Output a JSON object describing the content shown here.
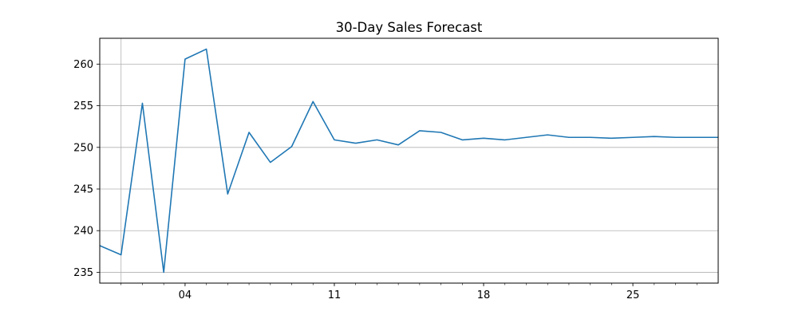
{
  "chart_data": {
    "type": "line",
    "title": "30-Day Sales Forecast",
    "xlabel": "",
    "ylabel": "",
    "x_date_start": "2024-06-30",
    "x": [
      "2024-06-30",
      "2024-07-01",
      "2024-07-02",
      "2024-07-03",
      "2024-07-04",
      "2024-07-05",
      "2024-07-06",
      "2024-07-07",
      "2024-07-08",
      "2024-07-09",
      "2024-07-10",
      "2024-07-11",
      "2024-07-12",
      "2024-07-13",
      "2024-07-14",
      "2024-07-15",
      "2024-07-16",
      "2024-07-17",
      "2024-07-18",
      "2024-07-19",
      "2024-07-20",
      "2024-07-21",
      "2024-07-22",
      "2024-07-23",
      "2024-07-24",
      "2024-07-25",
      "2024-07-26",
      "2024-07-27",
      "2024-07-28",
      "2024-07-29"
    ],
    "series": [
      {
        "name": "",
        "color": "#1f77b4",
        "values": [
          238.2,
          237.1,
          255.3,
          235.0,
          260.6,
          261.8,
          244.4,
          251.8,
          248.2,
          250.1,
          255.5,
          250.9,
          250.5,
          250.9,
          250.3,
          252.0,
          251.8,
          250.9,
          251.1,
          250.9,
          251.2,
          251.5,
          251.2,
          251.2,
          251.1,
          251.2,
          251.3,
          251.2,
          251.2,
          251.2
        ]
      }
    ],
    "xticks": [
      {
        "date": "2024-07-04",
        "label": "04"
      },
      {
        "date": "2024-07-11",
        "label": "11"
      },
      {
        "date": "2024-07-18",
        "label": "18"
      },
      {
        "date": "2024-07-25",
        "label": "25"
      }
    ],
    "yticks": [
      235,
      240,
      245,
      250,
      255,
      260
    ],
    "xlim": [
      "2024-06-30",
      "2024-07-29"
    ],
    "ylim": [
      233.7,
      263.1
    ],
    "grid": true,
    "legend": "none"
  }
}
